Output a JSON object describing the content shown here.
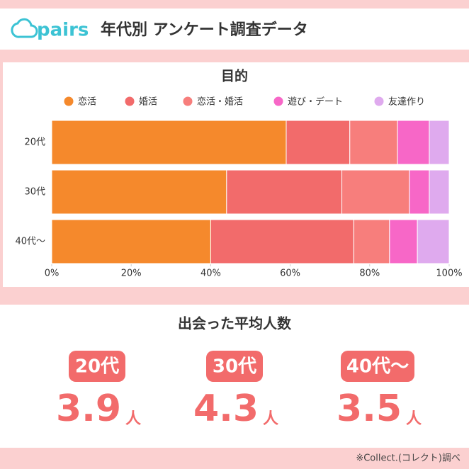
{
  "header": {
    "logo": "pairs",
    "title": "年代別 アンケート調査データ"
  },
  "chart_data": {
    "type": "stacked-barh",
    "title": "目的",
    "categories": [
      "20代",
      "30代",
      "40代〜"
    ],
    "series": [
      {
        "name": "恋活",
        "color": "#f5892c",
        "values": [
          59,
          44,
          40
        ]
      },
      {
        "name": "婚活",
        "color": "#f26b6b",
        "values": [
          16,
          29,
          36
        ]
      },
      {
        "name": "恋活・婚活",
        "color": "#f77e7c",
        "values": [
          12,
          17,
          9
        ]
      },
      {
        "name": "遊び・デート",
        "color": "#f767c7",
        "values": [
          8,
          5,
          7
        ]
      },
      {
        "name": "友達作り",
        "color": "#dfaaee",
        "values": [
          5,
          5,
          8
        ]
      }
    ],
    "xlim": [
      0,
      100
    ],
    "xticks": [
      {
        "value": 0,
        "label": "0%"
      },
      {
        "value": 20,
        "label": "20%"
      },
      {
        "value": 40,
        "label": "40%"
      },
      {
        "value": 60,
        "label": "60%"
      },
      {
        "value": 80,
        "label": "80%"
      },
      {
        "value": 100,
        "label": "100%"
      }
    ]
  },
  "average": {
    "title": "出会った平均人数",
    "unit": "人",
    "items": [
      {
        "label": "20代",
        "value": 3.9
      },
      {
        "label": "30代",
        "value": 4.3
      },
      {
        "label": "40代〜",
        "value": 3.5
      }
    ]
  },
  "footer": "※Collect.(コレクト)調べ"
}
